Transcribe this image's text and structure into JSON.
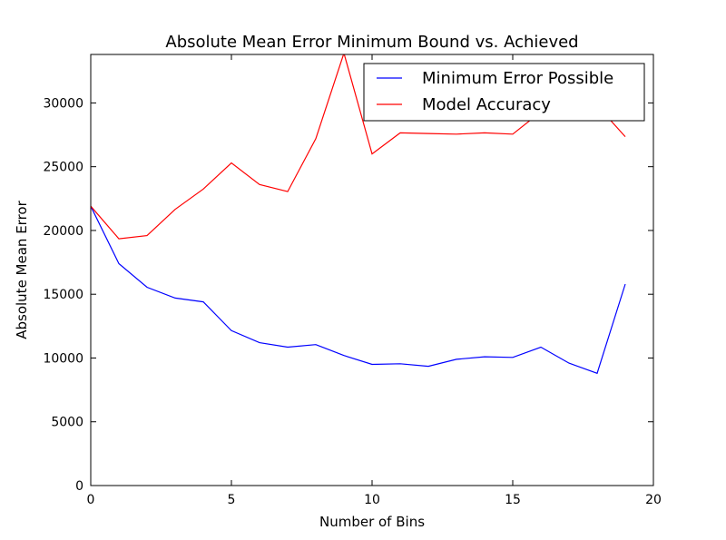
{
  "chart_data": {
    "type": "line",
    "title": "Absolute Mean Error Minimum Bound vs. Achieved",
    "xlabel": "Number of Bins",
    "ylabel": "Absolute Mean Error",
    "xlim": [
      0,
      20
    ],
    "ylim": [
      0,
      33800
    ],
    "xticks": [
      0,
      5,
      10,
      15,
      20
    ],
    "yticks": [
      0,
      5000,
      10000,
      15000,
      20000,
      25000,
      30000
    ],
    "grid": false,
    "legend_position": "top-right",
    "x": [
      0,
      1,
      2,
      3,
      4,
      5,
      6,
      7,
      8,
      9,
      10,
      11,
      12,
      13,
      14,
      15,
      16,
      17,
      18,
      19
    ],
    "series": [
      {
        "name": "Minimum Error Possible",
        "color": "#0000ff",
        "values": [
          21900,
          17400,
          15550,
          14700,
          14400,
          12150,
          11200,
          10850,
          11050,
          10200,
          9500,
          9550,
          9350,
          9900,
          10100,
          10050,
          10850,
          9600,
          8800,
          15800
        ]
      },
      {
        "name": "Model Accuracy",
        "color": "#ff0000",
        "values": [
          21900,
          19350,
          19600,
          21650,
          23250,
          25300,
          23600,
          23050,
          27200,
          33900,
          26000,
          27650,
          27600,
          27550,
          27650,
          27550,
          29300,
          29500,
          29800,
          27350
        ]
      }
    ]
  }
}
